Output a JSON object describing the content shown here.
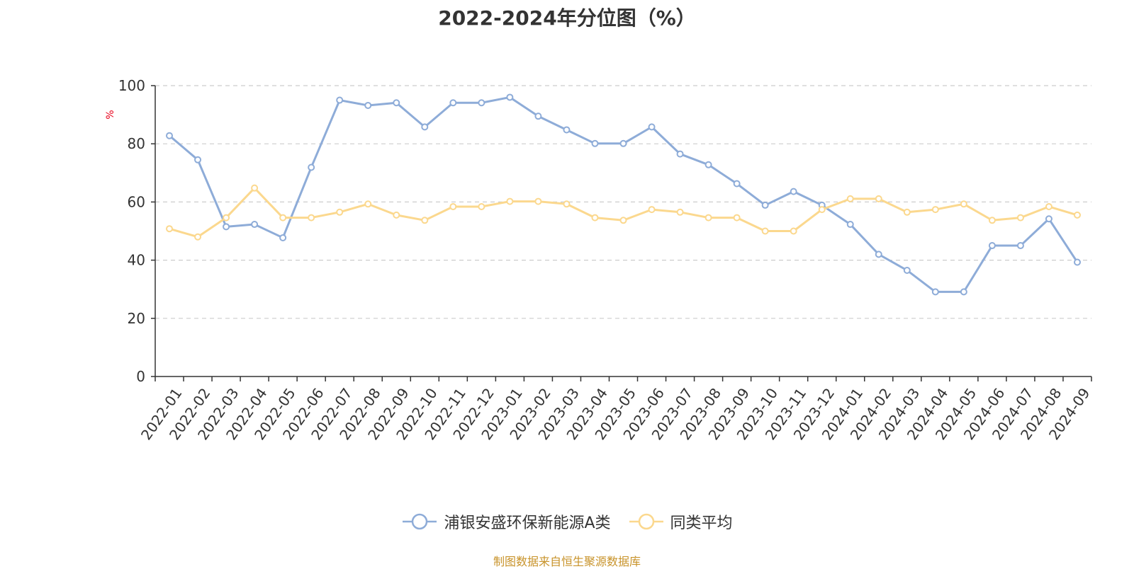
{
  "chart_data": {
    "type": "line",
    "title": "2022-2024年分位图（%）",
    "ylabel": "%",
    "xlabel": "",
    "ylim": [
      0,
      100
    ],
    "yticks": [
      0,
      20,
      40,
      60,
      80,
      100
    ],
    "grid": true,
    "legend_position": "bottom",
    "categories": [
      "2022-01",
      "2022-02",
      "2022-03",
      "2022-04",
      "2022-05",
      "2022-06",
      "2022-07",
      "2022-08",
      "2022-09",
      "2022-10",
      "2022-11",
      "2022-12",
      "2023-01",
      "2023-02",
      "2023-03",
      "2023-04",
      "2023-05",
      "2023-06",
      "2023-07",
      "2023-08",
      "2023-09",
      "2023-10",
      "2023-11",
      "2023-12",
      "2024-01",
      "2024-02",
      "2024-03",
      "2024-04",
      "2024-05",
      "2024-06",
      "2024-07",
      "2024-08",
      "2024-09"
    ],
    "series": [
      {
        "name": "浦银安盛环保新能源A类",
        "color": "#8eacd8",
        "values": [
          82.8,
          74.5,
          51.5,
          52.3,
          47.7,
          71.9,
          95.0,
          93.2,
          94.1,
          85.8,
          94.1,
          94.1,
          96.0,
          89.5,
          84.8,
          80.1,
          80.1,
          85.8,
          76.5,
          72.8,
          66.3,
          58.9,
          63.6,
          58.9,
          52.3,
          42.0,
          36.5,
          29.1,
          29.1,
          45.0,
          45.0,
          54.2,
          39.3
        ]
      },
      {
        "name": "同类平均",
        "color": "#fbd88e",
        "values": [
          50.8,
          48.0,
          54.6,
          64.8,
          54.6,
          54.6,
          56.5,
          59.3,
          55.5,
          53.7,
          58.4,
          58.4,
          60.2,
          60.2,
          59.3,
          54.6,
          53.7,
          57.4,
          56.5,
          54.6,
          54.6,
          50.0,
          50.0,
          57.4,
          61.1,
          61.1,
          56.5,
          57.4,
          59.3,
          53.7,
          54.6,
          58.4,
          55.5
        ]
      }
    ]
  },
  "source_note": "制图数据来自恒生聚源数据库"
}
